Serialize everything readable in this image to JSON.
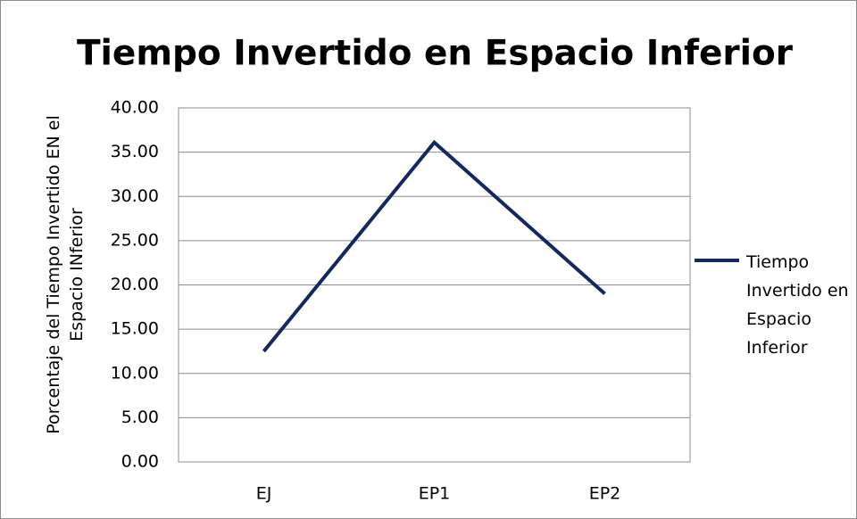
{
  "chart_data": {
    "type": "line",
    "title": "Tiempo Invertido en Espacio Inferior",
    "y_label": "Porcentaje del Tiempo Invertido EN el Espacio INferior",
    "categories": [
      "EJ",
      "EP1",
      "EP2"
    ],
    "series": [
      {
        "name": "Tiempo Invertido en Espacio Inferior",
        "color": "#13285e",
        "values": [
          12.5,
          36.1,
          19.0
        ]
      }
    ],
    "ylim": [
      0,
      40
    ],
    "yticks": [
      {
        "value": 0,
        "label": "0.00"
      },
      {
        "value": 5,
        "label": "5.00"
      },
      {
        "value": 10,
        "label": "10.00"
      },
      {
        "value": 15,
        "label": "15.00"
      },
      {
        "value": 20,
        "label": "20.00"
      },
      {
        "value": 25,
        "label": "25.00"
      },
      {
        "value": 30,
        "label": "30.00"
      },
      {
        "value": 35,
        "label": "35.00"
      },
      {
        "value": 40,
        "label": "40.00"
      }
    ],
    "grid": true,
    "legend": "right"
  }
}
